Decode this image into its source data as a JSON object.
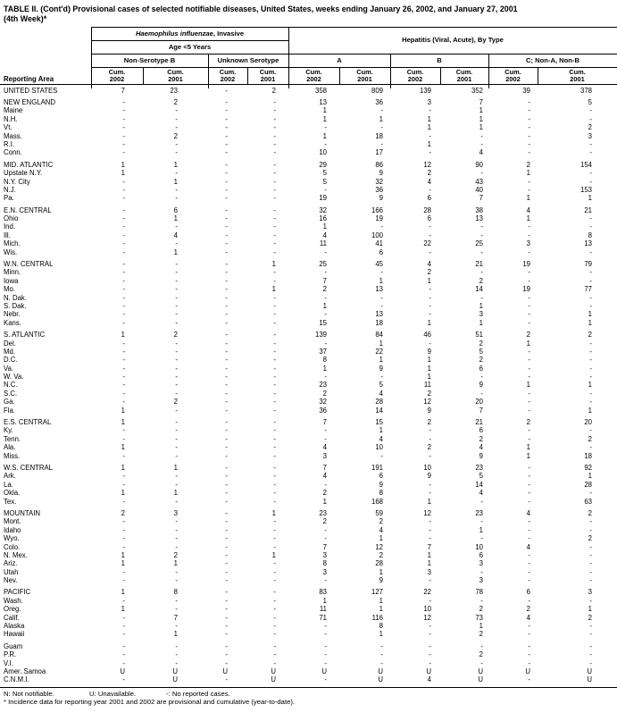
{
  "title": {
    "line1": "TABLE II. (Cont'd) Provisional cases of selected notifiable diseases, United States, weeks ending January 26, 2002, and January 27, 2001",
    "line2": "(4th Week)*"
  },
  "header": {
    "reporting_area": "Reporting Area",
    "group1_italic": "Haemophilus influenzae",
    "group1_rest": ", Invasive",
    "group1_sub": "Age <5 Years",
    "group2": "Hepatitis (Viral, Acute), By Type",
    "subgroups": [
      "Non-Serotype B",
      "Unknown Serotype",
      "A",
      "B",
      "C; Non-A, Non-B"
    ],
    "cum_label": "Cum.",
    "years": [
      "2002",
      "2001",
      "2002",
      "2001",
      "2002",
      "2001",
      "2002",
      "2001",
      "2002",
      "2001"
    ]
  },
  "rows": [
    {
      "area": "UNITED STATES",
      "type": "total",
      "gap": false,
      "values": [
        "7",
        "23",
        "-",
        "2",
        "358",
        "809",
        "139",
        "352",
        "39",
        "378"
      ]
    },
    {
      "area": "NEW ENGLAND",
      "type": "region",
      "gap": true,
      "values": [
        "-",
        "2",
        "-",
        "-",
        "13",
        "36",
        "3",
        "7",
        "-",
        "5"
      ]
    },
    {
      "area": "Maine",
      "type": "state",
      "values": [
        "-",
        "-",
        "-",
        "-",
        "1",
        "-",
        "-",
        "1",
        "-",
        "-"
      ]
    },
    {
      "area": "N.H.",
      "type": "state",
      "values": [
        "-",
        "-",
        "-",
        "-",
        "1",
        "1",
        "1",
        "1",
        "-",
        "-"
      ]
    },
    {
      "area": "Vt.",
      "type": "state",
      "values": [
        "-",
        "-",
        "-",
        "-",
        "-",
        "-",
        "1",
        "1",
        "-",
        "2"
      ]
    },
    {
      "area": "Mass.",
      "type": "state",
      "values": [
        "-",
        "2",
        "-",
        "-",
        "1",
        "18",
        "-",
        "-",
        "-",
        "3"
      ]
    },
    {
      "area": "R.I.",
      "type": "state",
      "values": [
        "-",
        "-",
        "-",
        "-",
        "-",
        "-",
        "1",
        "-",
        "-",
        "-"
      ]
    },
    {
      "area": "Conn.",
      "type": "state",
      "values": [
        "-",
        "-",
        "-",
        "-",
        "10",
        "17",
        "-",
        "4",
        "-",
        "-"
      ]
    },
    {
      "area": "MID. ATLANTIC",
      "type": "region",
      "gap": true,
      "values": [
        "1",
        "1",
        "-",
        "-",
        "29",
        "86",
        "12",
        "90",
        "2",
        "154"
      ]
    },
    {
      "area": "Upstate N.Y.",
      "type": "state",
      "values": [
        "1",
        "-",
        "-",
        "-",
        "5",
        "9",
        "2",
        "-",
        "1",
        "-"
      ]
    },
    {
      "area": "N.Y. City",
      "type": "state",
      "values": [
        "-",
        "1",
        "-",
        "-",
        "5",
        "32",
        "4",
        "43",
        "-",
        "-"
      ]
    },
    {
      "area": "N.J.",
      "type": "state",
      "values": [
        "-",
        "-",
        "-",
        "-",
        "-",
        "36",
        "-",
        "40",
        "-",
        "153"
      ]
    },
    {
      "area": "Pa.",
      "type": "state",
      "values": [
        "-",
        "-",
        "-",
        "-",
        "19",
        "9",
        "6",
        "7",
        "1",
        "1"
      ]
    },
    {
      "area": "E.N. CENTRAL",
      "type": "region",
      "gap": true,
      "values": [
        "-",
        "6",
        "-",
        "-",
        "32",
        "166",
        "28",
        "38",
        "4",
        "21"
      ]
    },
    {
      "area": "Ohio",
      "type": "state",
      "values": [
        "-",
        "1",
        "-",
        "-",
        "16",
        "19",
        "6",
        "13",
        "1",
        "-"
      ]
    },
    {
      "area": "Ind.",
      "type": "state",
      "values": [
        "-",
        "-",
        "-",
        "-",
        "1",
        "-",
        "-",
        "-",
        "-",
        "-"
      ]
    },
    {
      "area": "Ill.",
      "type": "state",
      "values": [
        "-",
        "4",
        "-",
        "-",
        "4",
        "100",
        "-",
        "-",
        "-",
        "8"
      ]
    },
    {
      "area": "Mich.",
      "type": "state",
      "values": [
        "-",
        "-",
        "-",
        "-",
        "11",
        "41",
        "22",
        "25",
        "3",
        "13"
      ]
    },
    {
      "area": "Wis.",
      "type": "state",
      "values": [
        "-",
        "1",
        "-",
        "-",
        "-",
        "6",
        "-",
        "-",
        "-",
        "-"
      ]
    },
    {
      "area": "W.N. CENTRAL",
      "type": "region",
      "gap": true,
      "values": [
        "-",
        "-",
        "-",
        "1",
        "25",
        "45",
        "4",
        "21",
        "19",
        "79"
      ]
    },
    {
      "area": "Minn.",
      "type": "state",
      "values": [
        "-",
        "-",
        "-",
        "-",
        "-",
        "-",
        "2",
        "-",
        "-",
        "-"
      ]
    },
    {
      "area": "Iowa",
      "type": "state",
      "values": [
        "-",
        "-",
        "-",
        "-",
        "7",
        "1",
        "1",
        "2",
        "-",
        "-"
      ]
    },
    {
      "area": "Mo.",
      "type": "state",
      "values": [
        "-",
        "-",
        "-",
        "1",
        "2",
        "13",
        "-",
        "14",
        "19",
        "77"
      ]
    },
    {
      "area": "N. Dak.",
      "type": "state",
      "values": [
        "-",
        "-",
        "-",
        "-",
        "-",
        "-",
        "-",
        "-",
        "-",
        "-"
      ]
    },
    {
      "area": "S. Dak.",
      "type": "state",
      "values": [
        "-",
        "-",
        "-",
        "-",
        "1",
        "-",
        "-",
        "1",
        "-",
        "-"
      ]
    },
    {
      "area": "Nebr.",
      "type": "state",
      "values": [
        "-",
        "-",
        "-",
        "-",
        "-",
        "13",
        "-",
        "3",
        "-",
        "1"
      ]
    },
    {
      "area": "Kans.",
      "type": "state",
      "values": [
        "-",
        "-",
        "-",
        "-",
        "15",
        "18",
        "1",
        "1",
        "-",
        "1"
      ]
    },
    {
      "area": "S. ATLANTIC",
      "type": "region",
      "gap": true,
      "values": [
        "1",
        "2",
        "-",
        "-",
        "139",
        "84",
        "46",
        "51",
        "2",
        "2"
      ]
    },
    {
      "area": "Del.",
      "type": "state",
      "values": [
        "-",
        "-",
        "-",
        "-",
        "-",
        "1",
        "-",
        "2",
        "1",
        "-"
      ]
    },
    {
      "area": "Md.",
      "type": "state",
      "values": [
        "-",
        "-",
        "-",
        "-",
        "37",
        "22",
        "9",
        "5",
        "-",
        "-"
      ]
    },
    {
      "area": "D.C.",
      "type": "state",
      "values": [
        "-",
        "-",
        "-",
        "-",
        "8",
        "1",
        "1",
        "2",
        "-",
        "-"
      ]
    },
    {
      "area": "Va.",
      "type": "state",
      "values": [
        "-",
        "-",
        "-",
        "-",
        "1",
        "9",
        "1",
        "6",
        "-",
        "-"
      ]
    },
    {
      "area": "W. Va.",
      "type": "state",
      "values": [
        "-",
        "-",
        "-",
        "-",
        "-",
        "-",
        "1",
        "-",
        "-",
        "-"
      ]
    },
    {
      "area": "N.C.",
      "type": "state",
      "values": [
        "-",
        "-",
        "-",
        "-",
        "23",
        "5",
        "11",
        "9",
        "1",
        "1"
      ]
    },
    {
      "area": "S.C.",
      "type": "state",
      "values": [
        "-",
        "-",
        "-",
        "-",
        "2",
        "4",
        "2",
        "-",
        "-",
        "-"
      ]
    },
    {
      "area": "Ga.",
      "type": "state",
      "values": [
        "-",
        "2",
        "-",
        "-",
        "32",
        "28",
        "12",
        "20",
        "-",
        "-"
      ]
    },
    {
      "area": "Fla.",
      "type": "state",
      "values": [
        "1",
        "-",
        "-",
        "-",
        "36",
        "14",
        "9",
        "7",
        "-",
        "1"
      ]
    },
    {
      "area": "E.S. CENTRAL",
      "type": "region",
      "gap": true,
      "values": [
        "1",
        "-",
        "-",
        "-",
        "7",
        "15",
        "2",
        "21",
        "2",
        "20"
      ]
    },
    {
      "area": "Ky.",
      "type": "state",
      "values": [
        "-",
        "-",
        "-",
        "-",
        "-",
        "1",
        "-",
        "6",
        "-",
        "-"
      ]
    },
    {
      "area": "Tenn.",
      "type": "state",
      "values": [
        "-",
        "-",
        "-",
        "-",
        "-",
        "4",
        "-",
        "2",
        "-",
        "2"
      ]
    },
    {
      "area": "Ala.",
      "type": "state",
      "values": [
        "1",
        "-",
        "-",
        "-",
        "4",
        "10",
        "2",
        "4",
        "1",
        "-"
      ]
    },
    {
      "area": "Miss.",
      "type": "state",
      "values": [
        "-",
        "-",
        "-",
        "-",
        "3",
        "-",
        "-",
        "9",
        "1",
        "18"
      ]
    },
    {
      "area": "W.S. CENTRAL",
      "type": "region",
      "gap": true,
      "values": [
        "1",
        "1",
        "-",
        "-",
        "7",
        "191",
        "10",
        "23",
        "-",
        "92"
      ]
    },
    {
      "area": "Ark.",
      "type": "state",
      "values": [
        "-",
        "-",
        "-",
        "-",
        "4",
        "6",
        "9",
        "5",
        "-",
        "1"
      ]
    },
    {
      "area": "La.",
      "type": "state",
      "values": [
        "-",
        "-",
        "-",
        "-",
        "-",
        "9",
        "-",
        "14",
        "-",
        "28"
      ]
    },
    {
      "area": "Okla.",
      "type": "state",
      "values": [
        "1",
        "1",
        "-",
        "-",
        "2",
        "8",
        "-",
        "4",
        "-",
        "-"
      ]
    },
    {
      "area": "Tex.",
      "type": "state",
      "values": [
        "-",
        "-",
        "-",
        "-",
        "1",
        "168",
        "1",
        "-",
        "-",
        "63"
      ]
    },
    {
      "area": "MOUNTAIN",
      "type": "region",
      "gap": true,
      "values": [
        "2",
        "3",
        "-",
        "1",
        "23",
        "59",
        "12",
        "23",
        "4",
        "2"
      ]
    },
    {
      "area": "Mont.",
      "type": "state",
      "values": [
        "-",
        "-",
        "-",
        "-",
        "2",
        "2",
        "-",
        "-",
        "-",
        "-"
      ]
    },
    {
      "area": "Idaho",
      "type": "state",
      "values": [
        "-",
        "-",
        "-",
        "-",
        "-",
        "4",
        "-",
        "1",
        "-",
        "-"
      ]
    },
    {
      "area": "Wyo.",
      "type": "state",
      "values": [
        "-",
        "-",
        "-",
        "-",
        "-",
        "1",
        "-",
        "-",
        "-",
        "2"
      ]
    },
    {
      "area": "Colo.",
      "type": "state",
      "values": [
        "-",
        "-",
        "-",
        "-",
        "7",
        "12",
        "7",
        "10",
        "4",
        "-"
      ]
    },
    {
      "area": "N. Mex.",
      "type": "state",
      "values": [
        "1",
        "2",
        "-",
        "1",
        "3",
        "2",
        "1",
        "6",
        "-",
        "-"
      ]
    },
    {
      "area": "Ariz.",
      "type": "state",
      "values": [
        "1",
        "1",
        "-",
        "-",
        "8",
        "28",
        "1",
        "3",
        "-",
        "-"
      ]
    },
    {
      "area": "Utah",
      "type": "state",
      "values": [
        "-",
        "-",
        "-",
        "-",
        "3",
        "1",
        "3",
        "-",
        "-",
        "-"
      ]
    },
    {
      "area": "Nev.",
      "type": "state",
      "values": [
        "-",
        "-",
        "-",
        "-",
        "-",
        "9",
        "-",
        "3",
        "-",
        "-"
      ]
    },
    {
      "area": "PACIFIC",
      "type": "region",
      "gap": true,
      "values": [
        "1",
        "8",
        "-",
        "-",
        "83",
        "127",
        "22",
        "78",
        "6",
        "3"
      ]
    },
    {
      "area": "Wash.",
      "type": "state",
      "values": [
        "-",
        "-",
        "-",
        "-",
        "1",
        "1",
        "-",
        "-",
        "-",
        "-"
      ]
    },
    {
      "area": "Oreg.",
      "type": "state",
      "values": [
        "1",
        "-",
        "-",
        "-",
        "11",
        "1",
        "10",
        "2",
        "2",
        "1"
      ]
    },
    {
      "area": "Calif.",
      "type": "state",
      "values": [
        "-",
        "7",
        "-",
        "-",
        "71",
        "116",
        "12",
        "73",
        "4",
        "2"
      ]
    },
    {
      "area": "Alaska",
      "type": "state",
      "values": [
        "-",
        "-",
        "-",
        "-",
        "-",
        "8",
        "-",
        "1",
        "-",
        "-"
      ]
    },
    {
      "area": "Hawaii",
      "type": "state",
      "values": [
        "-",
        "1",
        "-",
        "-",
        "-",
        "1",
        "-",
        "2",
        "-",
        "-"
      ]
    },
    {
      "area": "Guam",
      "type": "territory",
      "gap": true,
      "values": [
        "-",
        "-",
        "-",
        "-",
        "-",
        "-",
        "-",
        "-",
        "-",
        "-"
      ]
    },
    {
      "area": "P.R.",
      "type": "territory",
      "values": [
        "-",
        "-",
        "-",
        "-",
        "-",
        "-",
        "-",
        "2",
        "-",
        "-"
      ]
    },
    {
      "area": "V.I.",
      "type": "territory",
      "values": [
        "-",
        "-",
        "-",
        "-",
        "-",
        "-",
        "-",
        "-",
        "-",
        "-"
      ]
    },
    {
      "area": "Amer. Samoa",
      "type": "territory",
      "values": [
        "U",
        "U",
        "U",
        "U",
        "U",
        "U",
        "U",
        "U",
        "U",
        "U"
      ]
    },
    {
      "area": "C.N.M.I.",
      "type": "territory",
      "values": [
        "-",
        "U",
        "-",
        "U",
        "-",
        "U",
        "4",
        "U",
        "-",
        "U"
      ]
    }
  ],
  "footnotes": {
    "legend": [
      "N: Not notifiable.",
      "U: Unavailable.",
      "-: No reported cases."
    ],
    "note": "* Incidence data for reporting year 2001 and 2002 are provisional and cumulative (year-to-date)."
  }
}
